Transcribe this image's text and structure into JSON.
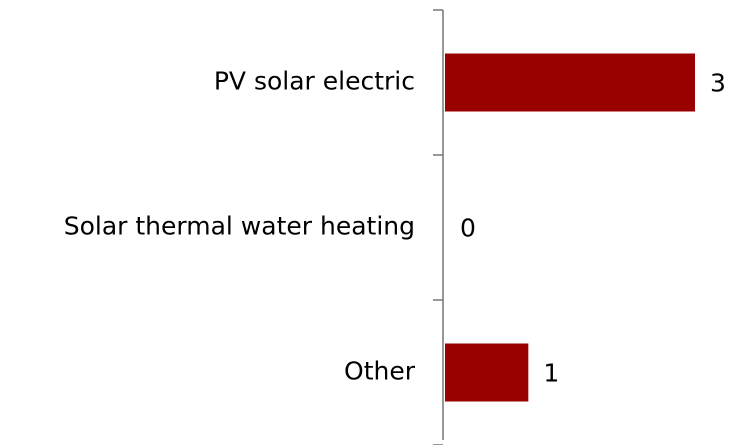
{
  "chart_data": {
    "type": "barh",
    "categories": [
      "PV solar electric",
      "Solar thermal water heating",
      "Other"
    ],
    "values": [
      3,
      0,
      1
    ],
    "color": "#990000"
  }
}
